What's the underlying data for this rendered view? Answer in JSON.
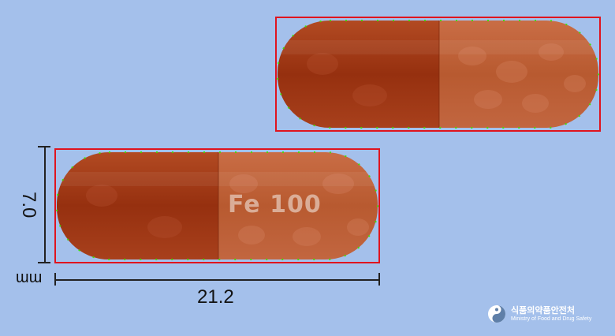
{
  "capsule_top": {
    "imprint": ""
  },
  "capsule_bottom": {
    "imprint": "Fe 100"
  },
  "dimensions": {
    "length": "21.2",
    "width": "7.0",
    "unit": "mm"
  },
  "logo": {
    "korean": "식품의약품안전처",
    "english": "Ministry of Food and Drug Safety"
  },
  "colors": {
    "background": "#a4c0eb",
    "bbox": "#e0141e",
    "contour": "#39e600",
    "capsule_dark": "#9c3212",
    "capsule_light": "#c2653d"
  }
}
